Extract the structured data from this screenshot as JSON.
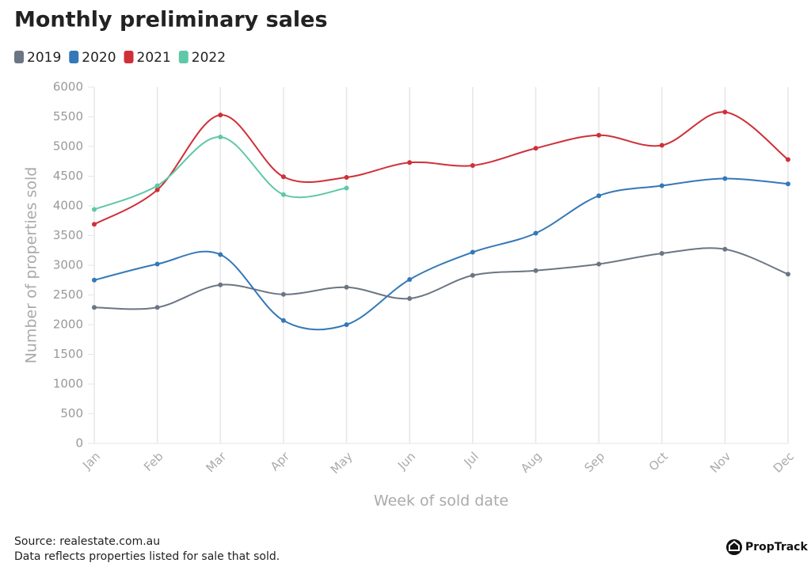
{
  "chart_data": {
    "type": "line",
    "title": "Monthly preliminary sales",
    "xlabel": "Week of sold date",
    "ylabel": "Number of properties sold",
    "categories": [
      "Jan",
      "Feb",
      "Mar",
      "Apr",
      "May",
      "Jun",
      "Jul",
      "Aug",
      "Sep",
      "Oct",
      "Nov",
      "Dec"
    ],
    "series": [
      {
        "name": "2019",
        "color": "#6b7684",
        "values": [
          2290,
          2290,
          2670,
          2510,
          2630,
          2440,
          2830,
          2910,
          3020,
          3200,
          3270,
          2850
        ]
      },
      {
        "name": "2020",
        "color": "#3478b8",
        "values": [
          2750,
          3020,
          3180,
          2070,
          2000,
          2760,
          3220,
          3540,
          4170,
          4340,
          4460,
          4370
        ]
      },
      {
        "name": "2021",
        "color": "#cf3038",
        "values": [
          3690,
          4270,
          5530,
          4490,
          4480,
          4730,
          4680,
          4970,
          5190,
          5020,
          5580,
          4780
        ]
      },
      {
        "name": "2022",
        "color": "#5ec8a8",
        "values": [
          3940,
          4340,
          5160,
          4190,
          4300,
          null,
          null,
          null,
          null,
          null,
          null,
          null
        ]
      }
    ],
    "ylim": [
      0,
      6000
    ],
    "yticks": [
      0,
      500,
      1000,
      1500,
      2000,
      2500,
      3000,
      3500,
      4000,
      4500,
      5000,
      5500,
      6000
    ],
    "grid": true,
    "source": "Source: realestate.com.au",
    "note": "Data reflects properties listed for sale that sold.",
    "logo": "PropTrack"
  }
}
